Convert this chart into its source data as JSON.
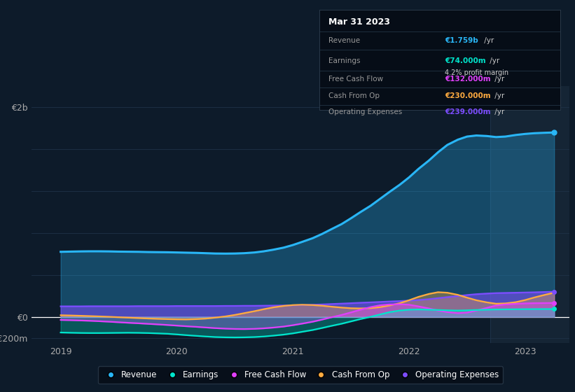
{
  "bg_color": "#0d1b2a",
  "plot_bg_color": "#0d1b2a",
  "highlight_bg": "#152535",
  "ylim": [
    -250000000.0,
    2200000000.0
  ],
  "xlim_start": 2018.75,
  "xlim_end": 2023.38,
  "xticks": [
    2019,
    2020,
    2021,
    2022,
    2023
  ],
  "highlight_x_start": 2022.7,
  "highlight_x_end": 2023.38,
  "revenue_color": "#29b6f6",
  "earnings_color": "#00e5cc",
  "fcf_color": "#e040fb",
  "cashfromop_color": "#ffab40",
  "opex_color": "#7c4dff",
  "zero_line_color": "#ffffff",
  "grid_color": "#1e3248",
  "legend_items": [
    "Revenue",
    "Earnings",
    "Free Cash Flow",
    "Cash From Op",
    "Operating Expenses"
  ],
  "legend_colors": [
    "#29b6f6",
    "#00e5cc",
    "#e040fb",
    "#ffab40",
    "#7c4dff"
  ],
  "tooltip_title": "Mar 31 2023",
  "tooltip_bg": "#060d17",
  "tooltip_border": "#2a3a4a",
  "revenue_label_val": "€1.759b",
  "earnings_label_val": "€74.000m",
  "margin_label": "4.2% profit margin",
  "fcf_label_val": "€132.000m",
  "cashfromop_label_val": "€230.000m",
  "opex_label_val": "€239.000m",
  "revenue_label_color": "#29b6f6",
  "earnings_label_color": "#00e5cc",
  "fcf_label_color": "#e040fb",
  "cashfromop_label_color": "#ffab40",
  "opex_label_color": "#7c4dff",
  "t": [
    2019.0,
    2019.08,
    2019.17,
    2019.25,
    2019.33,
    2019.42,
    2019.5,
    2019.58,
    2019.67,
    2019.75,
    2019.83,
    2019.92,
    2020.0,
    2020.08,
    2020.17,
    2020.25,
    2020.33,
    2020.42,
    2020.5,
    2020.58,
    2020.67,
    2020.75,
    2020.83,
    2020.92,
    2021.0,
    2021.08,
    2021.17,
    2021.25,
    2021.33,
    2021.42,
    2021.5,
    2021.58,
    2021.67,
    2021.75,
    2021.83,
    2021.92,
    2022.0,
    2022.08,
    2022.17,
    2022.25,
    2022.33,
    2022.42,
    2022.5,
    2022.58,
    2022.67,
    2022.75,
    2022.83,
    2022.92,
    2023.0,
    2023.08,
    2023.17,
    2023.25
  ],
  "revenue": [
    620000000.0,
    622000000.0,
    624000000.0,
    625000000.0,
    625000000.0,
    624000000.0,
    622000000.0,
    621000000.0,
    620000000.0,
    618000000.0,
    617000000.0,
    616000000.0,
    614000000.0,
    612000000.0,
    610000000.0,
    607000000.0,
    604000000.0,
    603000000.0,
    604000000.0,
    607000000.0,
    614000000.0,
    625000000.0,
    640000000.0,
    660000000.0,
    685000000.0,
    715000000.0,
    750000000.0,
    790000000.0,
    835000000.0,
    885000000.0,
    940000000.0,
    998000000.0,
    1060000000.0,
    1125000000.0,
    1190000000.0,
    1260000000.0,
    1330000000.0,
    1410000000.0,
    1490000000.0,
    1570000000.0,
    1640000000.0,
    1690000000.0,
    1720000000.0,
    1730000000.0,
    1725000000.0,
    1715000000.0,
    1720000000.0,
    1735000000.0,
    1745000000.0,
    1752000000.0,
    1756000000.0,
    1759000000.0
  ],
  "earnings": [
    -150000000.0,
    -152000000.0,
    -154000000.0,
    -155000000.0,
    -155000000.0,
    -154000000.0,
    -153000000.0,
    -152000000.0,
    -153000000.0,
    -155000000.0,
    -158000000.0,
    -162000000.0,
    -168000000.0,
    -175000000.0,
    -182000000.0,
    -188000000.0,
    -193000000.0,
    -196000000.0,
    -197000000.0,
    -196000000.0,
    -193000000.0,
    -188000000.0,
    -180000000.0,
    -170000000.0,
    -158000000.0,
    -143000000.0,
    -126000000.0,
    -107000000.0,
    -87000000.0,
    -66000000.0,
    -44000000.0,
    -22000000.0,
    0.0,
    22000000.0,
    44000000.0,
    60000000.0,
    68000000.0,
    70000000.0,
    68000000.0,
    65000000.0,
    62000000.0,
    60000000.0,
    62000000.0,
    65000000.0,
    68000000.0,
    70000000.0,
    71000000.0,
    72000000.0,
    73000000.0,
    73500000.0,
    74000000.0,
    74000000.0
  ],
  "fcf": [
    -30000000.0,
    -32000000.0,
    -35000000.0,
    -38000000.0,
    -42000000.0,
    -47000000.0,
    -52000000.0,
    -57000000.0,
    -62000000.0,
    -67000000.0,
    -72000000.0,
    -78000000.0,
    -84000000.0,
    -90000000.0,
    -96000000.0,
    -102000000.0,
    -108000000.0,
    -113000000.0,
    -116000000.0,
    -117000000.0,
    -115000000.0,
    -110000000.0,
    -103000000.0,
    -93000000.0,
    -80000000.0,
    -65000000.0,
    -47000000.0,
    -27000000.0,
    -5000000.0,
    18000000.0,
    42000000.0,
    67000000.0,
    93000000.0,
    110000000.0,
    118000000.0,
    120000000.0,
    115000000.0,
    100000000.0,
    80000000.0,
    60000000.0,
    45000000.0,
    35000000.0,
    40000000.0,
    60000000.0,
    85000000.0,
    108000000.0,
    118000000.0,
    124000000.0,
    128000000.0,
    130000000.0,
    131000000.0,
    132000000.0
  ],
  "cashfromop": [
    15000000.0,
    13000000.0,
    10000000.0,
    7000000.0,
    4000000.0,
    0.0,
    -4000000.0,
    -8000000.0,
    -12000000.0,
    -16000000.0,
    -19000000.0,
    -22000000.0,
    -24000000.0,
    -25000000.0,
    -22000000.0,
    -17000000.0,
    -8000000.0,
    4000000.0,
    18000000.0,
    35000000.0,
    54000000.0,
    73000000.0,
    90000000.0,
    104000000.0,
    112000000.0,
    115000000.0,
    112000000.0,
    106000000.0,
    97000000.0,
    88000000.0,
    82000000.0,
    80000000.0,
    83000000.0,
    92000000.0,
    108000000.0,
    130000000.0,
    158000000.0,
    190000000.0,
    218000000.0,
    235000000.0,
    230000000.0,
    210000000.0,
    183000000.0,
    158000000.0,
    138000000.0,
    125000000.0,
    128000000.0,
    140000000.0,
    160000000.0,
    185000000.0,
    210000000.0,
    230000000.0
  ],
  "opex": [
    100000000.0,
    100000000.0,
    100000000.0,
    101000000.0,
    101000000.0,
    101000000.0,
    101000000.0,
    101000000.0,
    102000000.0,
    102000000.0,
    102000000.0,
    102000000.0,
    103000000.0,
    103000000.0,
    103000000.0,
    103000000.0,
    103000000.0,
    104000000.0,
    104000000.0,
    105000000.0,
    105000000.0,
    106000000.0,
    107000000.0,
    108000000.0,
    110000000.0,
    112000000.0,
    115000000.0,
    118000000.0,
    122000000.0,
    126000000.0,
    130000000.0,
    134000000.0,
    138000000.0,
    142000000.0,
    146000000.0,
    150000000.0,
    154000000.0,
    160000000.0,
    168000000.0,
    178000000.0,
    188000000.0,
    198000000.0,
    208000000.0,
    216000000.0,
    222000000.0,
    226000000.0,
    228000000.0,
    230000000.0,
    232000000.0,
    234000000.0,
    237000000.0,
    239000000.0
  ]
}
